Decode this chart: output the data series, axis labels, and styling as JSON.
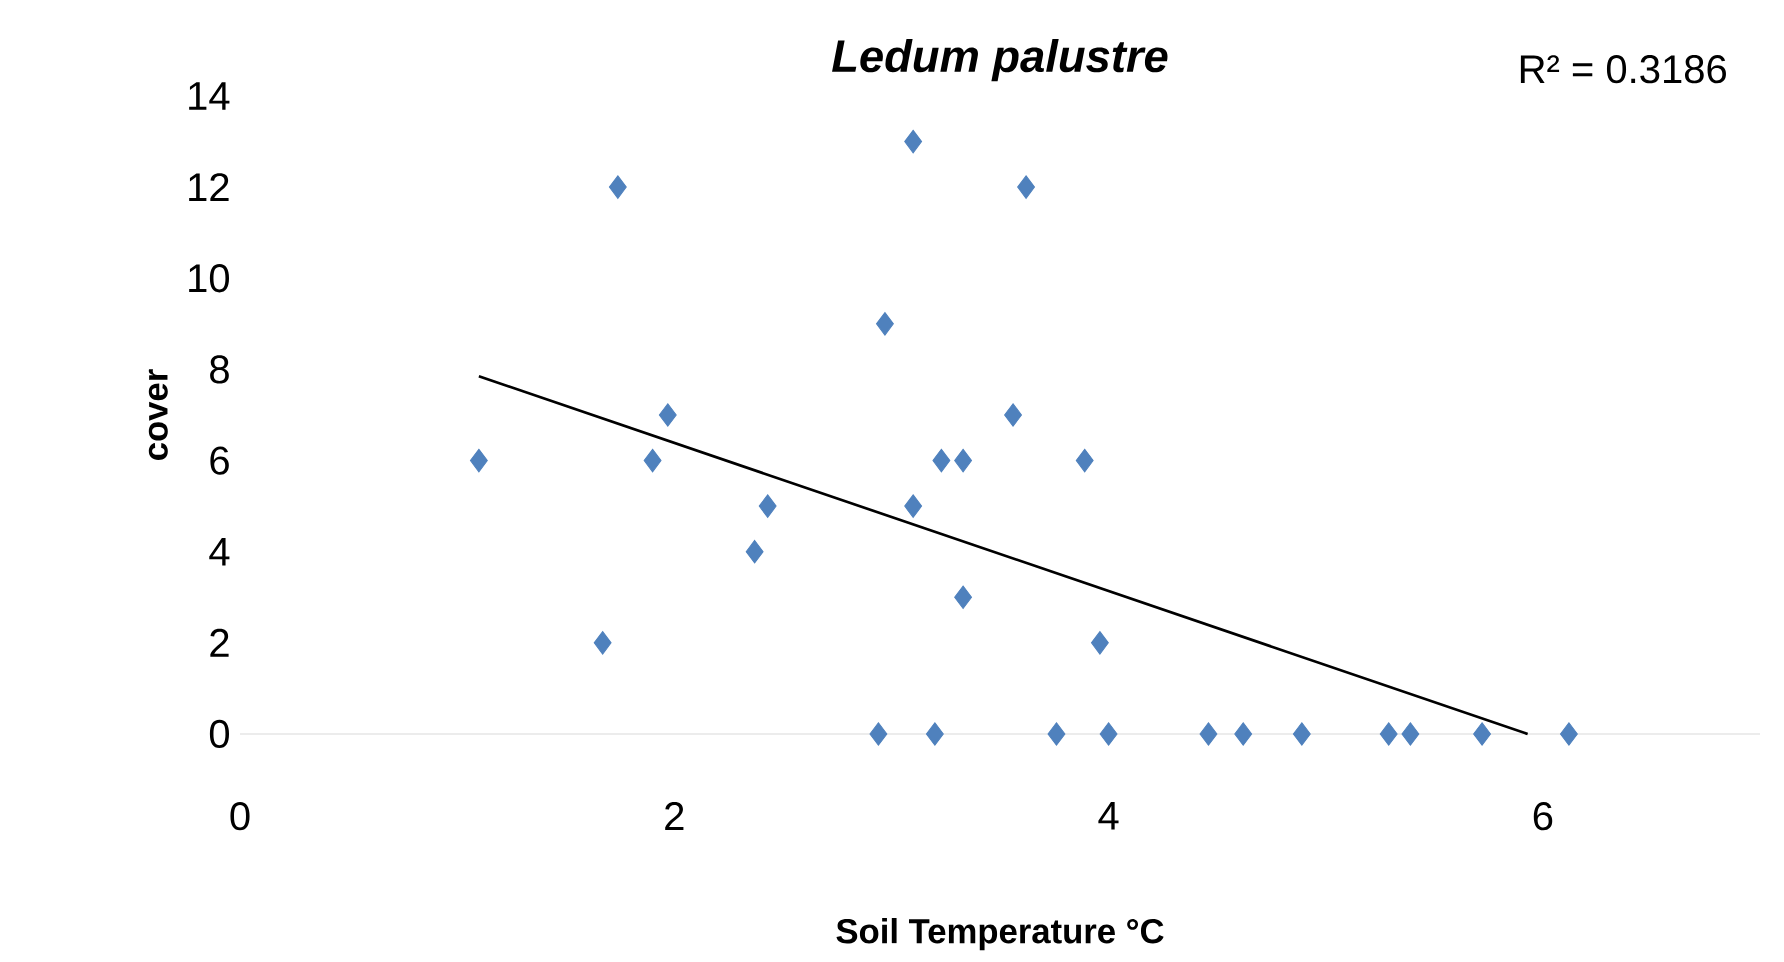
{
  "chart_data": {
    "type": "scatter",
    "title": "Ledum palustre",
    "xlabel": "Soil Temperature °C",
    "ylabel": "cover",
    "annotations": [
      "R² = 0.3186"
    ],
    "xlim": [
      0,
      7
    ],
    "ylim": [
      0,
      14
    ],
    "xticks": [
      0,
      2,
      4,
      6
    ],
    "yticks": [
      0,
      2,
      4,
      6,
      8,
      10,
      12,
      14
    ],
    "grid": false,
    "series": [
      {
        "marker": "diamond",
        "color": "#4f81bd",
        "x": [
          1.1,
          1.67,
          1.74,
          1.9,
          1.97,
          2.37,
          2.43,
          2.94,
          2.97,
          3.1,
          3.1,
          3.2,
          3.23,
          3.33,
          3.33,
          3.56,
          3.62,
          3.76,
          3.89,
          3.96,
          4.0,
          4.46,
          4.62,
          4.89,
          5.29,
          5.39,
          5.72,
          6.12
        ],
        "values": [
          6,
          2,
          12,
          6,
          7,
          4,
          5,
          0,
          9,
          13,
          5,
          0,
          6,
          6,
          3,
          7,
          12,
          0,
          6,
          2,
          0,
          0,
          0,
          0,
          0,
          0,
          0,
          0
        ]
      },
      {
        "type": "line",
        "marker": "none",
        "color": "#000000",
        "x": [
          1.1,
          5.93
        ],
        "values": [
          7.85,
          0
        ]
      }
    ]
  }
}
